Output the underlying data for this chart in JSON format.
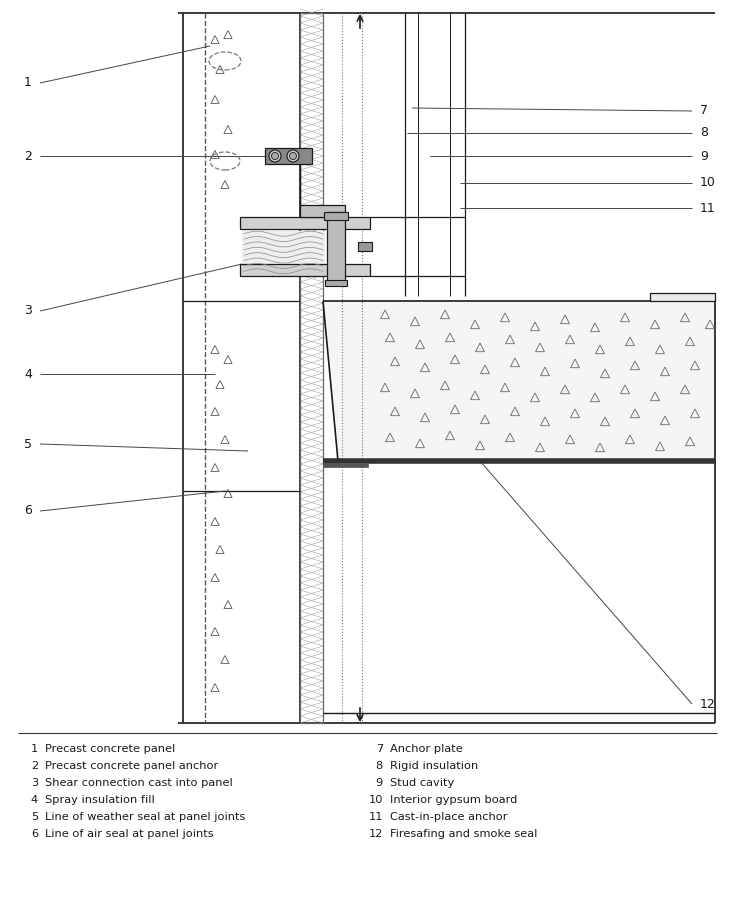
{
  "bg_color": "#ffffff",
  "line_color": "#1a1a1a",
  "legend_items_left": [
    [
      "1",
      "Precast concrete panel"
    ],
    [
      "2",
      "Precast concrete panel anchor"
    ],
    [
      "3",
      "Shear connection cast into panel"
    ],
    [
      "4",
      "Spray insulation fill"
    ],
    [
      "5",
      "Line of weather seal at panel joints"
    ],
    [
      "6",
      "Line of air seal at panel joints"
    ]
  ],
  "legend_items_right": [
    [
      "7",
      "Anchor plate"
    ],
    [
      "8",
      "Rigid insulation"
    ],
    [
      "9",
      "Stud cavity"
    ],
    [
      "10",
      "Interior gypsum board"
    ],
    [
      "11",
      "Cast-in-place anchor"
    ],
    [
      "12",
      "Firesafing and smoke seal"
    ]
  ]
}
